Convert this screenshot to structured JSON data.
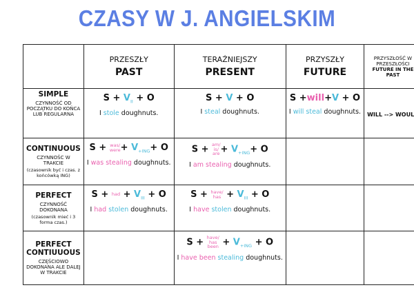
{
  "title": "CZASY W J. ANGIELSKIM",
  "colors": {
    "title": "#5b7fe3",
    "blue": "#4bbad9",
    "pink": "#e95fae"
  },
  "header": [
    {
      "pl": "PRZESZŁY",
      "en": "PAST"
    },
    {
      "pl": "TERAŹNIEJSZY",
      "en": "PRESENT"
    },
    {
      "pl": "PRZYSZŁY",
      "en": "FUTURE"
    },
    {
      "pl": "PRZYSZŁOŚĆ W PRZESZŁOŚCI",
      "en": "FUTURE IN THE PAST"
    }
  ],
  "rows": [
    {
      "name": "SIMPLE",
      "desc": "CZYNNOŚĆ OD POCZĄTKU DO KOŃCA LUB REGULARNA",
      "note": null,
      "cells": [
        {
          "formula": [
            {
              "text": "S + "
            },
            {
              "text": "V",
              "color": "blue",
              "sub": "II"
            },
            {
              "text": " + O"
            }
          ],
          "example": [
            {
              "text": "I "
            },
            {
              "text": "stole",
              "color": "blue"
            },
            {
              "text": " doughnuts."
            }
          ]
        },
        {
          "formula": [
            {
              "text": "S + "
            },
            {
              "text": "V",
              "color": "blue"
            },
            {
              "text": " + O"
            }
          ],
          "example": [
            {
              "text": "I "
            },
            {
              "text": "steal",
              "color": "blue"
            },
            {
              "text": " doughnuts."
            }
          ]
        },
        {
          "formula": [
            {
              "text": "S +"
            },
            {
              "text": "will",
              "color": "pink"
            },
            {
              "text": "+"
            },
            {
              "text": "V",
              "color": "blue"
            },
            {
              "text": " + O"
            }
          ],
          "example": [
            {
              "text": "I "
            },
            {
              "text": "will steal",
              "color": "blue"
            },
            {
              "text": " doughnuts."
            }
          ]
        },
        {
          "formula": null,
          "example": [
            {
              "text": "WILL --> WOULD"
            }
          ]
        }
      ]
    },
    {
      "name": "CONTINUOUS",
      "desc": "CZYNNOŚC W TRAKCIE",
      "note": "(czasownik być i czas. z końcówką ING)",
      "cells": [
        {
          "formula": [
            {
              "text": "S + "
            },
            {
              "stack": [
                "was/",
                "were"
              ],
              "color": "pink"
            },
            {
              "text": "+ "
            },
            {
              "text": "V",
              "color": "blue",
              "sub": "+ING"
            },
            {
              "text": "+ O"
            }
          ],
          "example": [
            {
              "text": "I "
            },
            {
              "text": "was",
              "color": "pink"
            },
            {
              "text": " "
            },
            {
              "text": "stealing",
              "color": "pink"
            },
            {
              "text": " doughnuts."
            }
          ]
        },
        {
          "formula": [
            {
              "text": "S + "
            },
            {
              "stack": [
                "am/",
                "is/",
                "are"
              ],
              "color": "pink"
            },
            {
              "text": "+ "
            },
            {
              "text": "V",
              "color": "blue",
              "sub": "+ING"
            },
            {
              "text": "+ O"
            }
          ],
          "example": [
            {
              "text": "I "
            },
            {
              "text": "am",
              "color": "pink"
            },
            {
              "text": " "
            },
            {
              "text": "stealing",
              "color": "pink"
            },
            {
              "text": " doughnuts."
            }
          ]
        },
        null,
        null
      ]
    },
    {
      "name": "PERFECT",
      "desc": "CZYNNOŚĆ DOKONANA",
      "note": "(czasownik mieć i 3 forma czas.)",
      "cells": [
        {
          "formula": [
            {
              "text": "S + "
            },
            {
              "stack": [
                "had"
              ],
              "color": "pink"
            },
            {
              "text": " + "
            },
            {
              "text": "V",
              "color": "blue",
              "sub": "III"
            },
            {
              "text": " + O"
            }
          ],
          "example": [
            {
              "text": "I "
            },
            {
              "text": "had",
              "color": "pink"
            },
            {
              "text": " "
            },
            {
              "text": "stolen",
              "color": "blue"
            },
            {
              "text": " doughnuts."
            }
          ]
        },
        {
          "formula": [
            {
              "text": "S + "
            },
            {
              "stack": [
                "have/",
                "has"
              ],
              "color": "pink"
            },
            {
              "text": " + "
            },
            {
              "text": "V",
              "color": "blue",
              "sub": "III"
            },
            {
              "text": " + O"
            }
          ],
          "example": [
            {
              "text": "I "
            },
            {
              "text": "have",
              "color": "pink"
            },
            {
              "text": " "
            },
            {
              "text": "stolen",
              "color": "blue"
            },
            {
              "text": " doughnuts."
            }
          ]
        },
        null,
        null
      ]
    },
    {
      "name": "PERFECT CONTIUUOUS",
      "desc": "CZĘŚCIOWO DOKONANA ALE DALEJ W TRAKCIE",
      "note": null,
      "cells": [
        null,
        {
          "formula": [
            {
              "text": "S + "
            },
            {
              "stack": [
                "have/",
                "has",
                "been"
              ],
              "color": "pink"
            },
            {
              "text": " + "
            },
            {
              "text": "V",
              "color": "blue",
              "sub": "+ING"
            },
            {
              "text": " + O"
            }
          ],
          "example": [
            {
              "text": "I "
            },
            {
              "text": "have been",
              "color": "pink"
            },
            {
              "text": " "
            },
            {
              "text": "stealing",
              "color": "blue"
            },
            {
              "text": " doughnuts."
            }
          ]
        },
        null,
        null
      ]
    }
  ]
}
